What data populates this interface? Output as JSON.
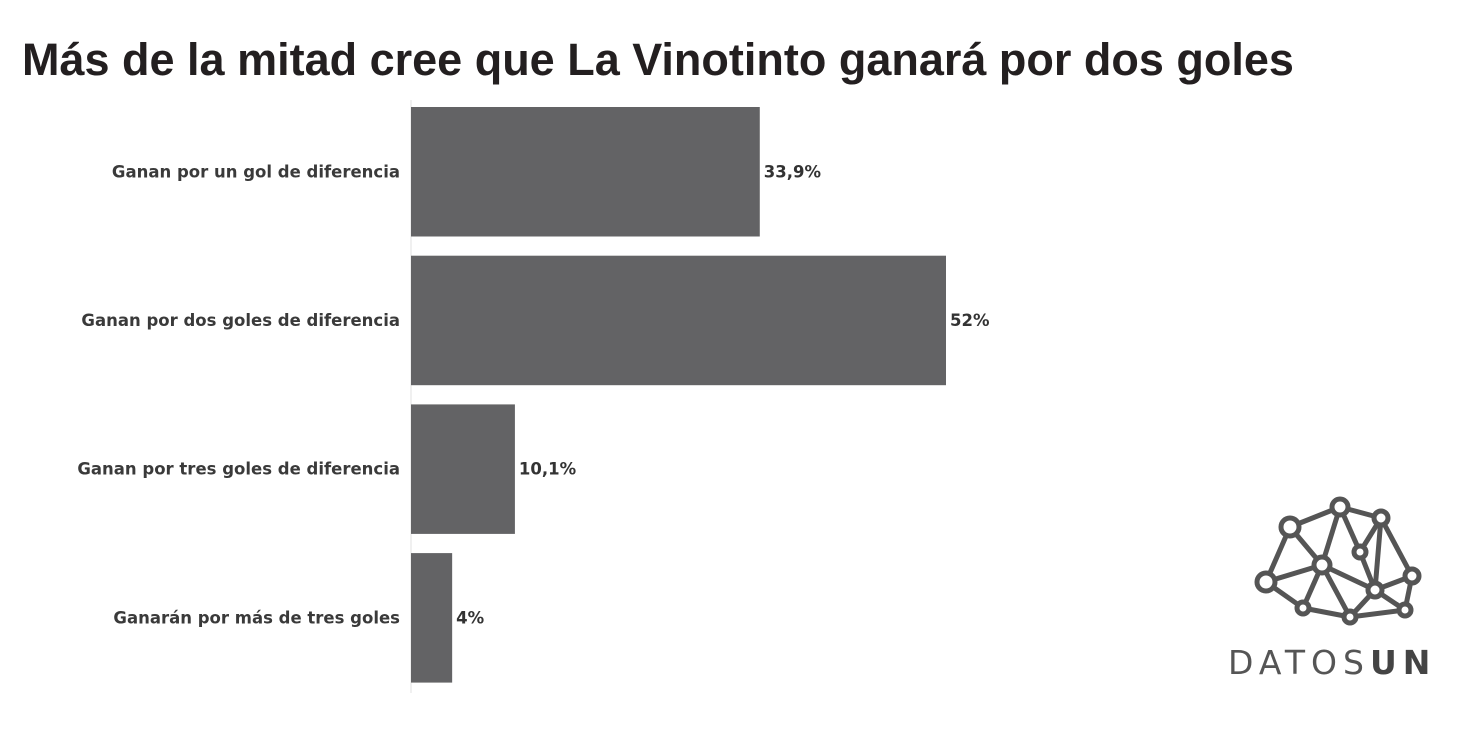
{
  "chart_data": {
    "type": "barh",
    "title": "Más de la mitad cree que La Vinotinto ganará por dos goles",
    "categories": [
      "Ganan por un gol de diferencia",
      "Ganan por dos goles de diferencia",
      "Ganan por tres goles de diferencia",
      "Ganarán por más de tres goles"
    ],
    "values": [
      33.9,
      52,
      10.1,
      4
    ],
    "value_labels": [
      "33,9%",
      "52%",
      "10,1%",
      "4%"
    ],
    "color": "#636365"
  },
  "logo": [
    "DATOS",
    "UN"
  ]
}
